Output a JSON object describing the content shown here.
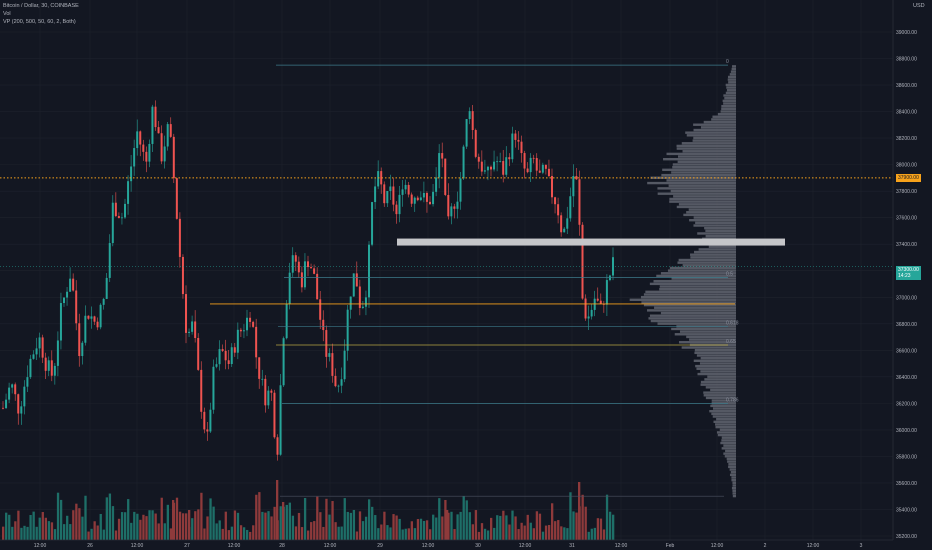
{
  "header": {
    "symbol_line": "Bitcoin / Dollar, 30, COINBASE",
    "volume_label": "Vol",
    "vp_label": "VP (200, 500, 50, 60, 2, Both)"
  },
  "currency_label": "USD",
  "price_axis": {
    "labels": [
      "39000.00",
      "38800.00",
      "38600.00",
      "38400.00",
      "38200.00",
      "38000.00",
      "37800.00",
      "37600.00",
      "37400.00",
      "37200.00",
      "37000.00",
      "36800.00",
      "36600.00",
      "36400.00",
      "36200.00",
      "36000.00",
      "35800.00",
      "35600.00",
      "35400.00",
      "35200.00"
    ],
    "current_price": "37300.00",
    "countdown": "14:23",
    "dotted_price_label": "37900.00"
  },
  "time_axis": {
    "labels": [
      "12:00",
      "26",
      "12:00",
      "27",
      "12:00",
      "28",
      "12:00",
      "29",
      "12:00",
      "30",
      "12:00",
      "31",
      "12:00",
      "Feb",
      "12:00",
      "2",
      "12:00",
      "3"
    ]
  },
  "fib_levels": [
    {
      "label": "0",
      "price": 38750
    },
    {
      "label": "0.5",
      "price": 37150
    },
    {
      "label": "0.618",
      "price": 36780
    },
    {
      "label": "0.65",
      "price": 36640
    },
    {
      "label": "0.786",
      "price": 36200
    }
  ],
  "colors": {
    "background": "#131722",
    "up": "#26a69a",
    "down": "#ef5350",
    "vol_up": "#1e6f68",
    "vol_down": "#8e3a3b",
    "dotted_line": "#f7a21b",
    "orange_line": "#f7a21b",
    "current_price_line": "#26a69a",
    "gray_zone": "#c5c6c9",
    "profile": "#5d606b",
    "fib_line": "#3d7a8a"
  }
}
